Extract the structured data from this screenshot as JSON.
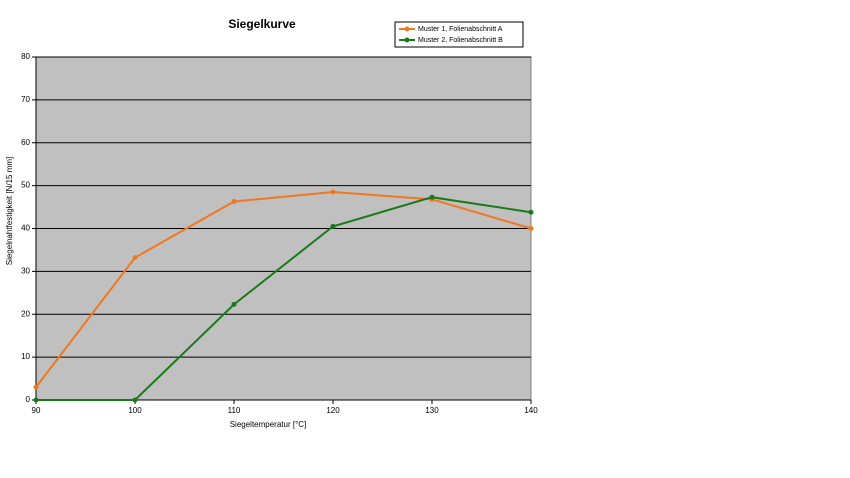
{
  "chart_data": {
    "type": "line",
    "title": "Siegelkurve",
    "xlabel": "Siegeltemperatur [°C]",
    "ylabel": "Siegelnahtfestigkeit [N/15 mm]",
    "x": [
      90,
      100,
      110,
      120,
      130,
      140
    ],
    "series": [
      {
        "name": "Muster 1, Folienabschnitt A",
        "color": "#f07820",
        "values": [
          3,
          33.2,
          46.3,
          48.5,
          46.8,
          40
        ]
      },
      {
        "name": "Muster 2, Folienabschnitt B",
        "color": "#1a7a1a",
        "values": [
          0,
          0,
          22.3,
          40.5,
          47.3,
          43.8
        ]
      }
    ],
    "xlim": [
      90,
      140
    ],
    "xticks": [
      90,
      100,
      110,
      120,
      130,
      140
    ],
    "ylim": [
      0,
      80
    ],
    "yticks": [
      0,
      10,
      20,
      30,
      40,
      50,
      60,
      70,
      80
    ],
    "grid": true,
    "legend": "top-right"
  }
}
